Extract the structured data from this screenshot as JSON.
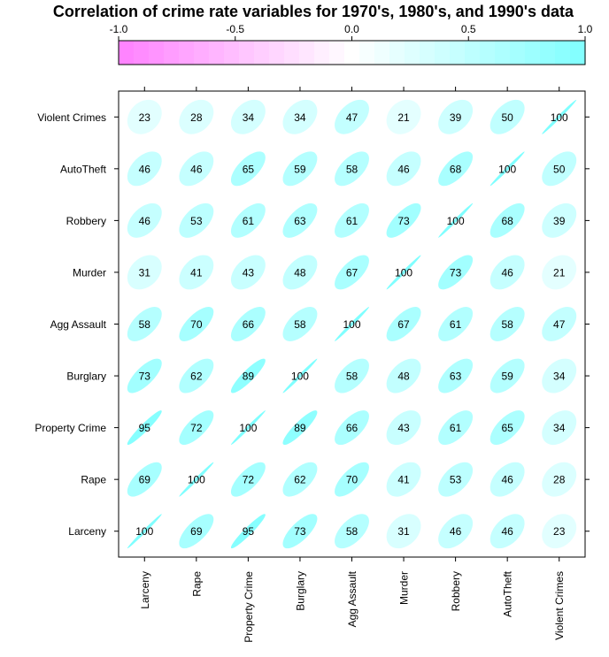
{
  "chart_data": {
    "type": "heatmap",
    "title": "Correlation of crime rate variables for 1970's, 1980's, and 1990's data",
    "xlabel": "",
    "ylabel": "",
    "variables": [
      "Larceny",
      "Rape",
      "Property Crime",
      "Burglary",
      "Agg Assault",
      "Murder",
      "Robbery",
      "AutoTheft",
      "Violent Crimes"
    ],
    "values": [
      [
        100,
        69,
        95,
        73,
        58,
        31,
        46,
        46,
        23
      ],
      [
        69,
        100,
        72,
        62,
        70,
        41,
        53,
        46,
        28
      ],
      [
        95,
        72,
        100,
        89,
        66,
        43,
        61,
        65,
        34
      ],
      [
        73,
        62,
        89,
        100,
        58,
        48,
        63,
        59,
        34
      ],
      [
        58,
        70,
        66,
        58,
        100,
        67,
        61,
        58,
        47
      ],
      [
        31,
        41,
        43,
        48,
        67,
        100,
        73,
        46,
        21
      ],
      [
        46,
        53,
        61,
        63,
        61,
        73,
        100,
        68,
        39
      ],
      [
        46,
        46,
        65,
        59,
        58,
        46,
        68,
        100,
        50
      ],
      [
        23,
        28,
        34,
        34,
        47,
        21,
        39,
        50,
        100
      ]
    ],
    "colorbar": {
      "ticks": [
        "-1.0",
        "-0.5",
        "0.0",
        "0.5",
        "1.0"
      ],
      "range": [
        -1,
        1
      ],
      "low_color": "#ff80ff",
      "mid_color": "#ffffff",
      "high_color": "#80ffff"
    },
    "grid": false
  }
}
